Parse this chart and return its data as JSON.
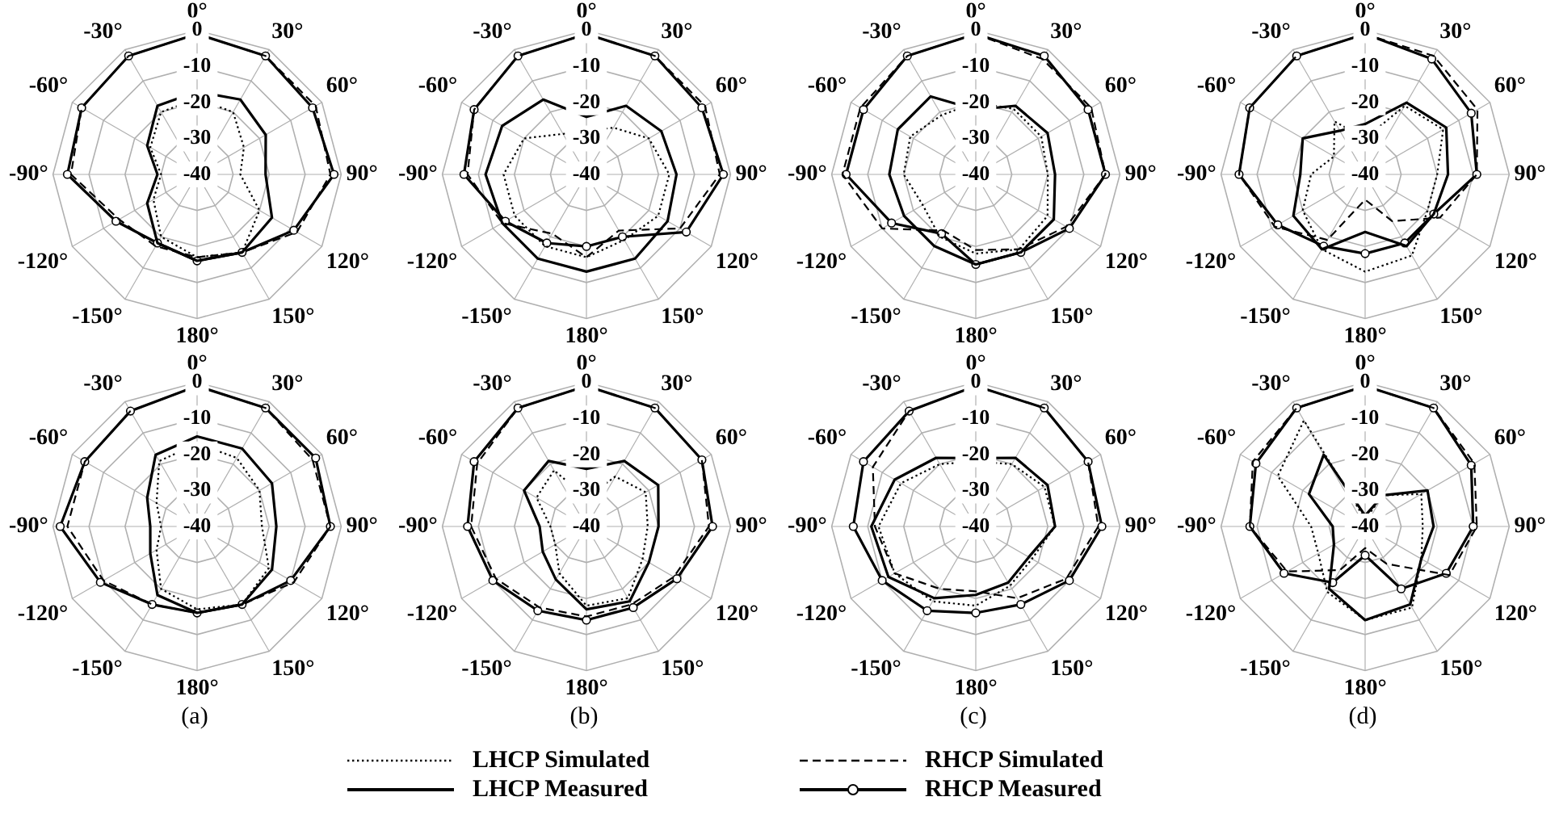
{
  "chart_data": [
    {
      "type": "radar",
      "categories": [
        "0°",
        "30°",
        "60°",
        "90°",
        "120°",
        "150°",
        "180°",
        "-150°",
        "-120°",
        "-90°",
        "-60°",
        "-30°"
      ],
      "ylim": [
        -40,
        0
      ],
      "yticks": [
        -40,
        -30,
        -20,
        -10,
        0
      ],
      "grid": true,
      "legend": "bottom",
      "series": [
        {
          "name": "LHCP Simulated",
          "color": "#000000",
          "line_style": "dotted",
          "marker": "none",
          "values": [
            -19,
            -20,
            -25,
            -28,
            -20,
            -15,
            -17,
            -20,
            -26,
            -30,
            -25,
            -20
          ]
        },
        {
          "name": "LHCP Measured",
          "color": "#000000",
          "line_style": "solid",
          "marker": "none",
          "values": [
            -17,
            -16,
            -18,
            -21,
            -16,
            -15,
            -16,
            -18,
            -24,
            -29,
            -24,
            -18
          ]
        },
        {
          "name": "RHCP Simulated",
          "color": "#000000",
          "line_style": "dashed",
          "marker": "none",
          "values": [
            -1,
            -2,
            -2,
            -3,
            -8,
            -15,
            -17,
            -17,
            -15,
            -5,
            -3,
            -2
          ]
        },
        {
          "name": "RHCP Measured",
          "color": "#000000",
          "line_style": "solid",
          "marker": "circle",
          "values": [
            -1,
            -2,
            -3,
            -2,
            -9,
            -15,
            -16,
            -18,
            -14,
            -4,
            -3,
            -2
          ]
        }
      ]
    },
    {
      "type": "radar",
      "categories": [
        "0°",
        "30°",
        "60°",
        "90°",
        "120°",
        "150°",
        "180°",
        "-150°",
        "-120°",
        "-90°",
        "-60°",
        "-30°"
      ],
      "ylim": [
        -40,
        0
      ],
      "yticks": [
        -40,
        -30,
        -20,
        -10,
        0
      ],
      "grid": true,
      "series": [
        {
          "color": "#000000",
          "line_style": "dotted",
          "marker": "none",
          "values": [
            -28,
            -25,
            -20,
            -17,
            -17,
            -19,
            -17,
            -17,
            -17,
            -17,
            -20,
            -27
          ]
        },
        {
          "color": "#000000",
          "line_style": "solid",
          "marker": "none",
          "values": [
            -24,
            -18,
            -16,
            -15,
            -14,
            -13,
            -13,
            -13,
            -13,
            -12,
            -13,
            -16
          ]
        },
        {
          "color": "#000000",
          "line_style": "dashed",
          "marker": "none",
          "values": [
            -1,
            -2,
            -2,
            -3,
            -10,
            -22,
            -17,
            -21,
            -13,
            -7,
            -4,
            -2
          ]
        },
        {
          "color": "#000000",
          "line_style": "solid",
          "marker": "circle",
          "values": [
            -1,
            -2,
            -3,
            -2,
            -8,
            -20,
            -20,
            -18,
            -14,
            -6,
            -4,
            -2
          ]
        }
      ]
    },
    {
      "type": "radar",
      "categories": [
        "0°",
        "30°",
        "60°",
        "90°",
        "120°",
        "150°",
        "180°",
        "-150°",
        "-120°",
        "-90°",
        "-60°",
        "-30°"
      ],
      "ylim": [
        -40,
        0
      ],
      "yticks": [
        -40,
        -30,
        -20,
        -10,
        0
      ],
      "grid": true,
      "series": [
        {
          "color": "#000000",
          "line_style": "dotted",
          "marker": "none",
          "values": [
            -20,
            -19,
            -19,
            -20,
            -17,
            -16,
            -18,
            -20,
            -23,
            -20,
            -19,
            -21
          ]
        },
        {
          "color": "#000000",
          "line_style": "solid",
          "marker": "none",
          "values": [
            -22,
            -18,
            -17,
            -18,
            -15,
            -15,
            -15,
            -17,
            -17,
            -16,
            -15,
            -15
          ]
        },
        {
          "color": "#000000",
          "line_style": "dashed",
          "marker": "none",
          "values": [
            -1,
            -3,
            -3,
            -4,
            -11,
            -16,
            -19,
            -22,
            -10,
            -3,
            -3,
            -2
          ]
        },
        {
          "color": "#000000",
          "line_style": "solid",
          "marker": "circle",
          "values": [
            -1,
            -2,
            -4,
            -4,
            -10,
            -15,
            -15,
            -21,
            -13,
            -4,
            -4,
            -2
          ]
        }
      ]
    },
    {
      "type": "radar",
      "categories": [
        "0°",
        "30°",
        "60°",
        "90°",
        "120°",
        "150°",
        "180°",
        "-150°",
        "-120°",
        "-90°",
        "-60°",
        "-30°"
      ],
      "ylim": [
        -40,
        0
      ],
      "yticks": [
        -40,
        -30,
        -20,
        -10,
        0
      ],
      "grid": true,
      "series": [
        {
          "color": "#000000",
          "line_style": "dotted",
          "marker": "none",
          "values": [
            -30,
            -18,
            -15,
            -20,
            -20,
            -14,
            -13,
            -16,
            -20,
            -25,
            -30,
            -23
          ]
        },
        {
          "color": "#000000",
          "line_style": "solid",
          "marker": "none",
          "values": [
            -26,
            -17,
            -14,
            -17,
            -18,
            -17,
            -24,
            -16,
            -17,
            -22,
            -20,
            -26
          ]
        },
        {
          "color": "#000000",
          "line_style": "dashed",
          "marker": "none",
          "values": [
            -1,
            -2,
            -4,
            -9,
            -16,
            -25,
            -33,
            -19,
            -11,
            -5,
            -3,
            -2
          ]
        },
        {
          "color": "#000000",
          "line_style": "solid",
          "marker": "circle",
          "values": [
            -1,
            -3,
            -6,
            -9,
            -18,
            -18,
            -18,
            -17,
            -12,
            -5,
            -3,
            -2
          ]
        }
      ]
    },
    {
      "type": "radar",
      "categories": [
        "0°",
        "30°",
        "60°",
        "90°",
        "120°",
        "150°",
        "180°",
        "-150°",
        "-120°",
        "-90°",
        "-60°",
        "-30°"
      ],
      "ylim": [
        -40,
        0
      ],
      "yticks": [
        -40,
        -30,
        -20,
        -10,
        0
      ],
      "grid": true,
      "annotations": [
        "(a)"
      ],
      "series": [
        {
          "color": "#000000",
          "line_style": "dotted",
          "marker": "none",
          "values": [
            -17,
            -18,
            -20,
            -22,
            -17,
            -15,
            -17,
            -20,
            -27,
            -30,
            -27,
            -19
          ]
        },
        {
          "color": "#000000",
          "line_style": "solid",
          "marker": "none",
          "values": [
            -15,
            -15,
            -16,
            -18,
            -16,
            -15,
            -16,
            -18,
            -25,
            -27,
            -24,
            -17
          ]
        },
        {
          "color": "#000000",
          "line_style": "dashed",
          "marker": "none",
          "values": [
            -1,
            -2,
            -3,
            -3,
            -9,
            -15,
            -16,
            -15,
            -10,
            -4,
            -4,
            -3
          ]
        },
        {
          "color": "#000000",
          "line_style": "solid",
          "marker": "circle",
          "values": [
            -1,
            -2,
            -2,
            -3,
            -10,
            -15,
            -16,
            -15,
            -9,
            -2,
            -4,
            -3
          ]
        }
      ]
    },
    {
      "type": "radar",
      "categories": [
        "0°",
        "30°",
        "60°",
        "90°",
        "120°",
        "150°",
        "180°",
        "-150°",
        "-120°",
        "-90°",
        "-60°",
        "-30°"
      ],
      "ylim": [
        -40,
        0
      ],
      "yticks": [
        -40,
        -30,
        -20,
        -10,
        0
      ],
      "grid": true,
      "annotations": [
        "(b)"
      ],
      "series": [
        {
          "color": "#000000",
          "line_style": "dotted",
          "marker": "none",
          "values": [
            -32,
            -24,
            -21,
            -23,
            -22,
            -17,
            -18,
            -25,
            -30,
            -30,
            -24,
            -22
          ]
        },
        {
          "color": "#000000",
          "line_style": "solid",
          "marker": "none",
          "values": [
            -24,
            -19,
            -17,
            -20,
            -20,
            -16,
            -17,
            -23,
            -26,
            -27,
            -20,
            -19
          ]
        },
        {
          "color": "#000000",
          "line_style": "dashed",
          "marker": "none",
          "values": [
            -1,
            -2,
            -3,
            -6,
            -12,
            -15,
            -15,
            -14,
            -11,
            -8,
            -5,
            -2
          ]
        },
        {
          "color": "#000000",
          "line_style": "solid",
          "marker": "circle",
          "values": [
            -1,
            -2,
            -3,
            -5,
            -11,
            -14,
            -14,
            -13,
            -10,
            -7,
            -4,
            -2
          ]
        }
      ]
    },
    {
      "type": "radar",
      "categories": [
        "0°",
        "30°",
        "60°",
        "90°",
        "120°",
        "150°",
        "180°",
        "-150°",
        "-120°",
        "-90°",
        "-60°",
        "-30°"
      ],
      "ylim": [
        -40,
        0
      ],
      "yticks": [
        -40,
        -30,
        -20,
        -10,
        0
      ],
      "grid": true,
      "annotations": [
        "(c)"
      ],
      "series": [
        {
          "color": "#000000",
          "line_style": "dotted",
          "marker": "none",
          "values": [
            -22,
            -20,
            -18,
            -18,
            -22,
            -21,
            -18,
            -16,
            -14,
            -13,
            -16,
            -20
          ]
        },
        {
          "color": "#000000",
          "line_style": "solid",
          "marker": "none",
          "values": [
            -21,
            -18,
            -17,
            -18,
            -23,
            -22,
            -21,
            -17,
            -12,
            -11,
            -14,
            -18
          ]
        },
        {
          "color": "#000000",
          "line_style": "dashed",
          "marker": "none",
          "values": [
            -1,
            -2,
            -4,
            -6,
            -11,
            -17,
            -22,
            -20,
            -14,
            -12,
            -7,
            -3
          ]
        },
        {
          "color": "#000000",
          "line_style": "solid",
          "marker": "circle",
          "values": [
            -1,
            -2,
            -4,
            -5,
            -10,
            -15,
            -16,
            -13,
            -10,
            -6,
            -4,
            -3
          ]
        }
      ]
    },
    {
      "type": "radar",
      "categories": [
        "0°",
        "30°",
        "60°",
        "90°",
        "120°",
        "150°",
        "180°",
        "-150°",
        "-120°",
        "-90°",
        "-60°",
        "-30°"
      ],
      "ylim": [
        -40,
        0
      ],
      "yticks": [
        -40,
        -30,
        -20,
        -10,
        0
      ],
      "grid": true,
      "annotations": [
        "(d)"
      ],
      "series": [
        {
          "color": "#000000",
          "line_style": "dotted",
          "marker": "none",
          "values": [
            -38,
            -30,
            -22,
            -24,
            -22,
            -14,
            -14,
            -19,
            -25,
            -25,
            -12,
            -6
          ]
        },
        {
          "color": "#000000",
          "line_style": "solid",
          "marker": "none",
          "values": [
            -37,
            -30,
            -20,
            -21,
            -22,
            -15,
            -14,
            -20,
            -30,
            -31,
            -22,
            -17
          ]
        },
        {
          "color": "#000000",
          "line_style": "dashed",
          "marker": "none",
          "values": [
            -1,
            -2,
            -5,
            -9,
            -13,
            -28,
            -34,
            -26,
            -15,
            -8,
            -4,
            -2
          ]
        },
        {
          "color": "#000000",
          "line_style": "solid",
          "marker": "circle",
          "values": [
            -1,
            -2,
            -6,
            -10,
            -14,
            -20,
            -32,
            -22,
            -14,
            -8,
            -5,
            -2
          ]
        }
      ]
    }
  ]
}
